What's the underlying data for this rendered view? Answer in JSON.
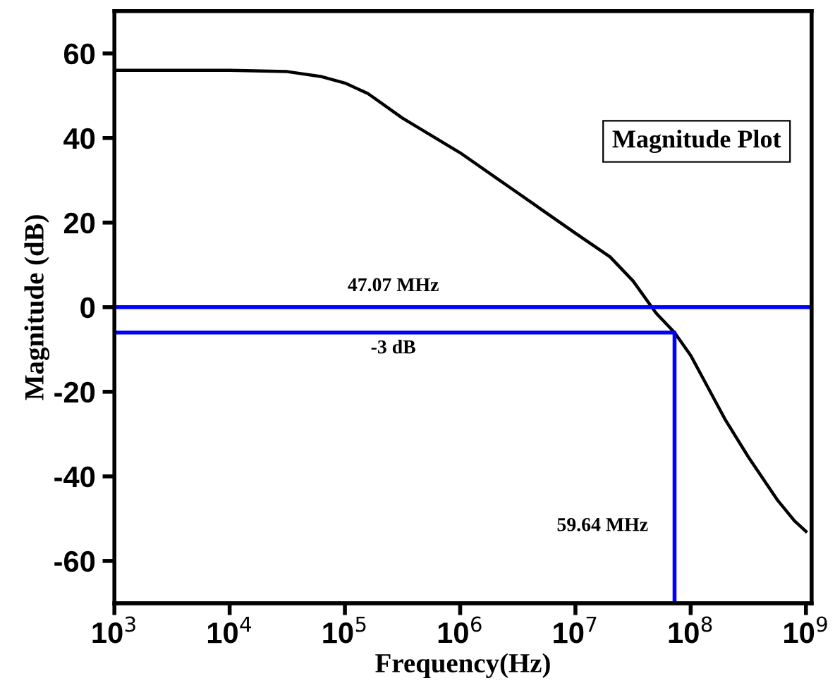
{
  "chart_data": {
    "type": "line",
    "xlabel": "Frequency(Hz)",
    "ylabel": "Magnitude (dB)",
    "log": "x",
    "series": [
      {
        "color": "#000000",
        "x": [
          1000,
          10000,
          31623,
          63096,
          100000,
          158489,
          316228,
          1000000,
          3162278,
          10000000,
          19952623,
          31622777,
          50118723,
          72443596,
          100000000,
          141253754,
          199526231,
          316227766,
          562341325,
          794328235,
          1000000000
        ],
        "values": [
          56,
          56,
          55.7,
          54.5,
          53,
          50.5,
          44.7,
          36.5,
          27,
          17.5,
          11.9,
          6.2,
          -1.4,
          -6,
          -11.4,
          -19,
          -26.6,
          -35.4,
          -45.5,
          -50.5,
          -53
        ]
      },
      {
        "type": "line",
        "color": "#0000ff",
        "x": [
          1000,
          72443596,
          72443596
        ],
        "values": [
          -6,
          -6,
          -70
        ]
      }
    ],
    "ref_lines": [
      {
        "axis": "y",
        "value": 0,
        "color": "#0000ff"
      }
    ],
    "annotations": [
      "Magnitude Plot",
      "47.07 MHz",
      "-3 dB",
      "59.64 MHz"
    ],
    "xlim": [
      1000,
      1120000000
    ],
    "ylim": [
      -70,
      70
    ],
    "xticks": [
      {
        "value": 1000,
        "label": "10$^{3}$"
      },
      {
        "value": 10000,
        "label": "10$^{4}$"
      },
      {
        "value": 100000,
        "label": "10$^{5}$"
      },
      {
        "value": 1000000,
        "label": "10$^{6}$"
      },
      {
        "value": 10000000,
        "label": "10$^{7}$"
      },
      {
        "value": 100000000,
        "label": "10$^{8}$"
      },
      {
        "value": 1000000000,
        "label": "10$^{9}$"
      }
    ],
    "yticks": [
      -60,
      -40,
      -20,
      0,
      20,
      40,
      60
    ],
    "grid": false,
    "legend": false
  }
}
